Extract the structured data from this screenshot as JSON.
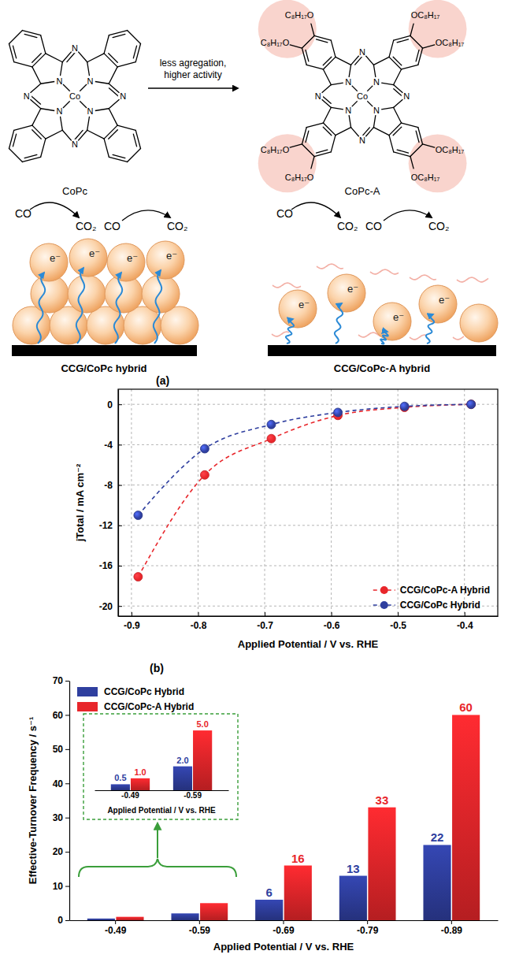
{
  "diagram": {
    "structures": [
      {
        "label": "CoPc",
        "metal": "Co",
        "nitrogen": "N"
      },
      {
        "label": "CoPc-A",
        "metal": "Co",
        "nitrogen": "N",
        "substituent_left": "C₈H₁₇O",
        "substituent_right": "OC₈H₁₇"
      }
    ],
    "reaction_text": [
      "less agregation,",
      "higher activity"
    ],
    "schematics": [
      {
        "caption": "CCG/CoPc hybrid",
        "reactant": "CO",
        "product": "CO₂",
        "electron": "e⁻"
      },
      {
        "caption": "CCG/CoPc-A hybrid",
        "reactant": "CO",
        "product": "CO₂",
        "electron": "e⁻"
      }
    ]
  },
  "chart_data": [
    {
      "type": "line",
      "panel_label": "(a)",
      "x_label": "Applied Potential / V vs. RHE",
      "y_label": "jTotal / mA cm⁻²",
      "x": [
        -0.89,
        -0.79,
        -0.69,
        -0.59,
        -0.49,
        -0.39
      ],
      "series": [
        {
          "name": "CCG/CoPc-A Hybrid",
          "color": "#e8262b",
          "marker": "circle",
          "line_style": "dashed",
          "values": [
            -17.1,
            -7.0,
            -3.4,
            -1.1,
            -0.3,
            0.0
          ]
        },
        {
          "name": "CCG/CoPc Hybrid",
          "color": "#2f3f9f",
          "marker": "circle",
          "line_style": "dashed",
          "values": [
            -11.0,
            -4.4,
            -2.0,
            -0.8,
            -0.2,
            0.0
          ]
        }
      ],
      "xlim": [
        -0.92,
        -0.35
      ],
      "xticks": [
        -0.9,
        -0.8,
        -0.7,
        -0.6,
        -0.5,
        -0.4
      ],
      "ylim": [
        -21,
        1.5
      ],
      "yticks": [
        -20,
        -16,
        -12,
        -8,
        -4,
        0
      ],
      "grid": true,
      "legend": "lower right"
    },
    {
      "type": "bar",
      "panel_label": "(b)",
      "x_label": "Applied Potential / V vs. RHE",
      "y_label": "Effective-Turnover Frequency / s⁻¹",
      "categories": [
        "-0.49",
        "-0.59",
        "-0.69",
        "-0.79",
        "-0.89"
      ],
      "series": [
        {
          "name": "CCG/CoPc Hybrid",
          "color": "#2f3f9f",
          "values": [
            0.5,
            2.0,
            6,
            13,
            22
          ],
          "value_labels": [
            null,
            null,
            "6",
            "13",
            "22"
          ]
        },
        {
          "name": "CCG/CoPc-A Hybrid",
          "color": "#e8262b",
          "values": [
            1.0,
            5.0,
            16,
            33,
            60
          ],
          "value_labels": [
            null,
            null,
            "16",
            "33",
            "60"
          ]
        }
      ],
      "ylim": [
        0,
        70
      ],
      "yticks": [
        0,
        10,
        20,
        30,
        40,
        50,
        60,
        70
      ],
      "data_labels": true,
      "legend": "upper left"
    },
    {
      "type": "bar",
      "x_label": "Applied Potential / V vs. RHE",
      "categories": [
        "-0.49",
        "-0.59"
      ],
      "series": [
        {
          "color": "#2f3f9f",
          "values": [
            0.5,
            2.0
          ],
          "value_labels": [
            "0.5",
            "2.0"
          ]
        },
        {
          "color": "#e8262b",
          "values": [
            1.0,
            5.0
          ],
          "value_labels": [
            "1.0",
            "5.0"
          ]
        }
      ],
      "ylim": [
        0,
        5.6
      ],
      "data_labels": true,
      "tick_labels": "x"
    }
  ]
}
